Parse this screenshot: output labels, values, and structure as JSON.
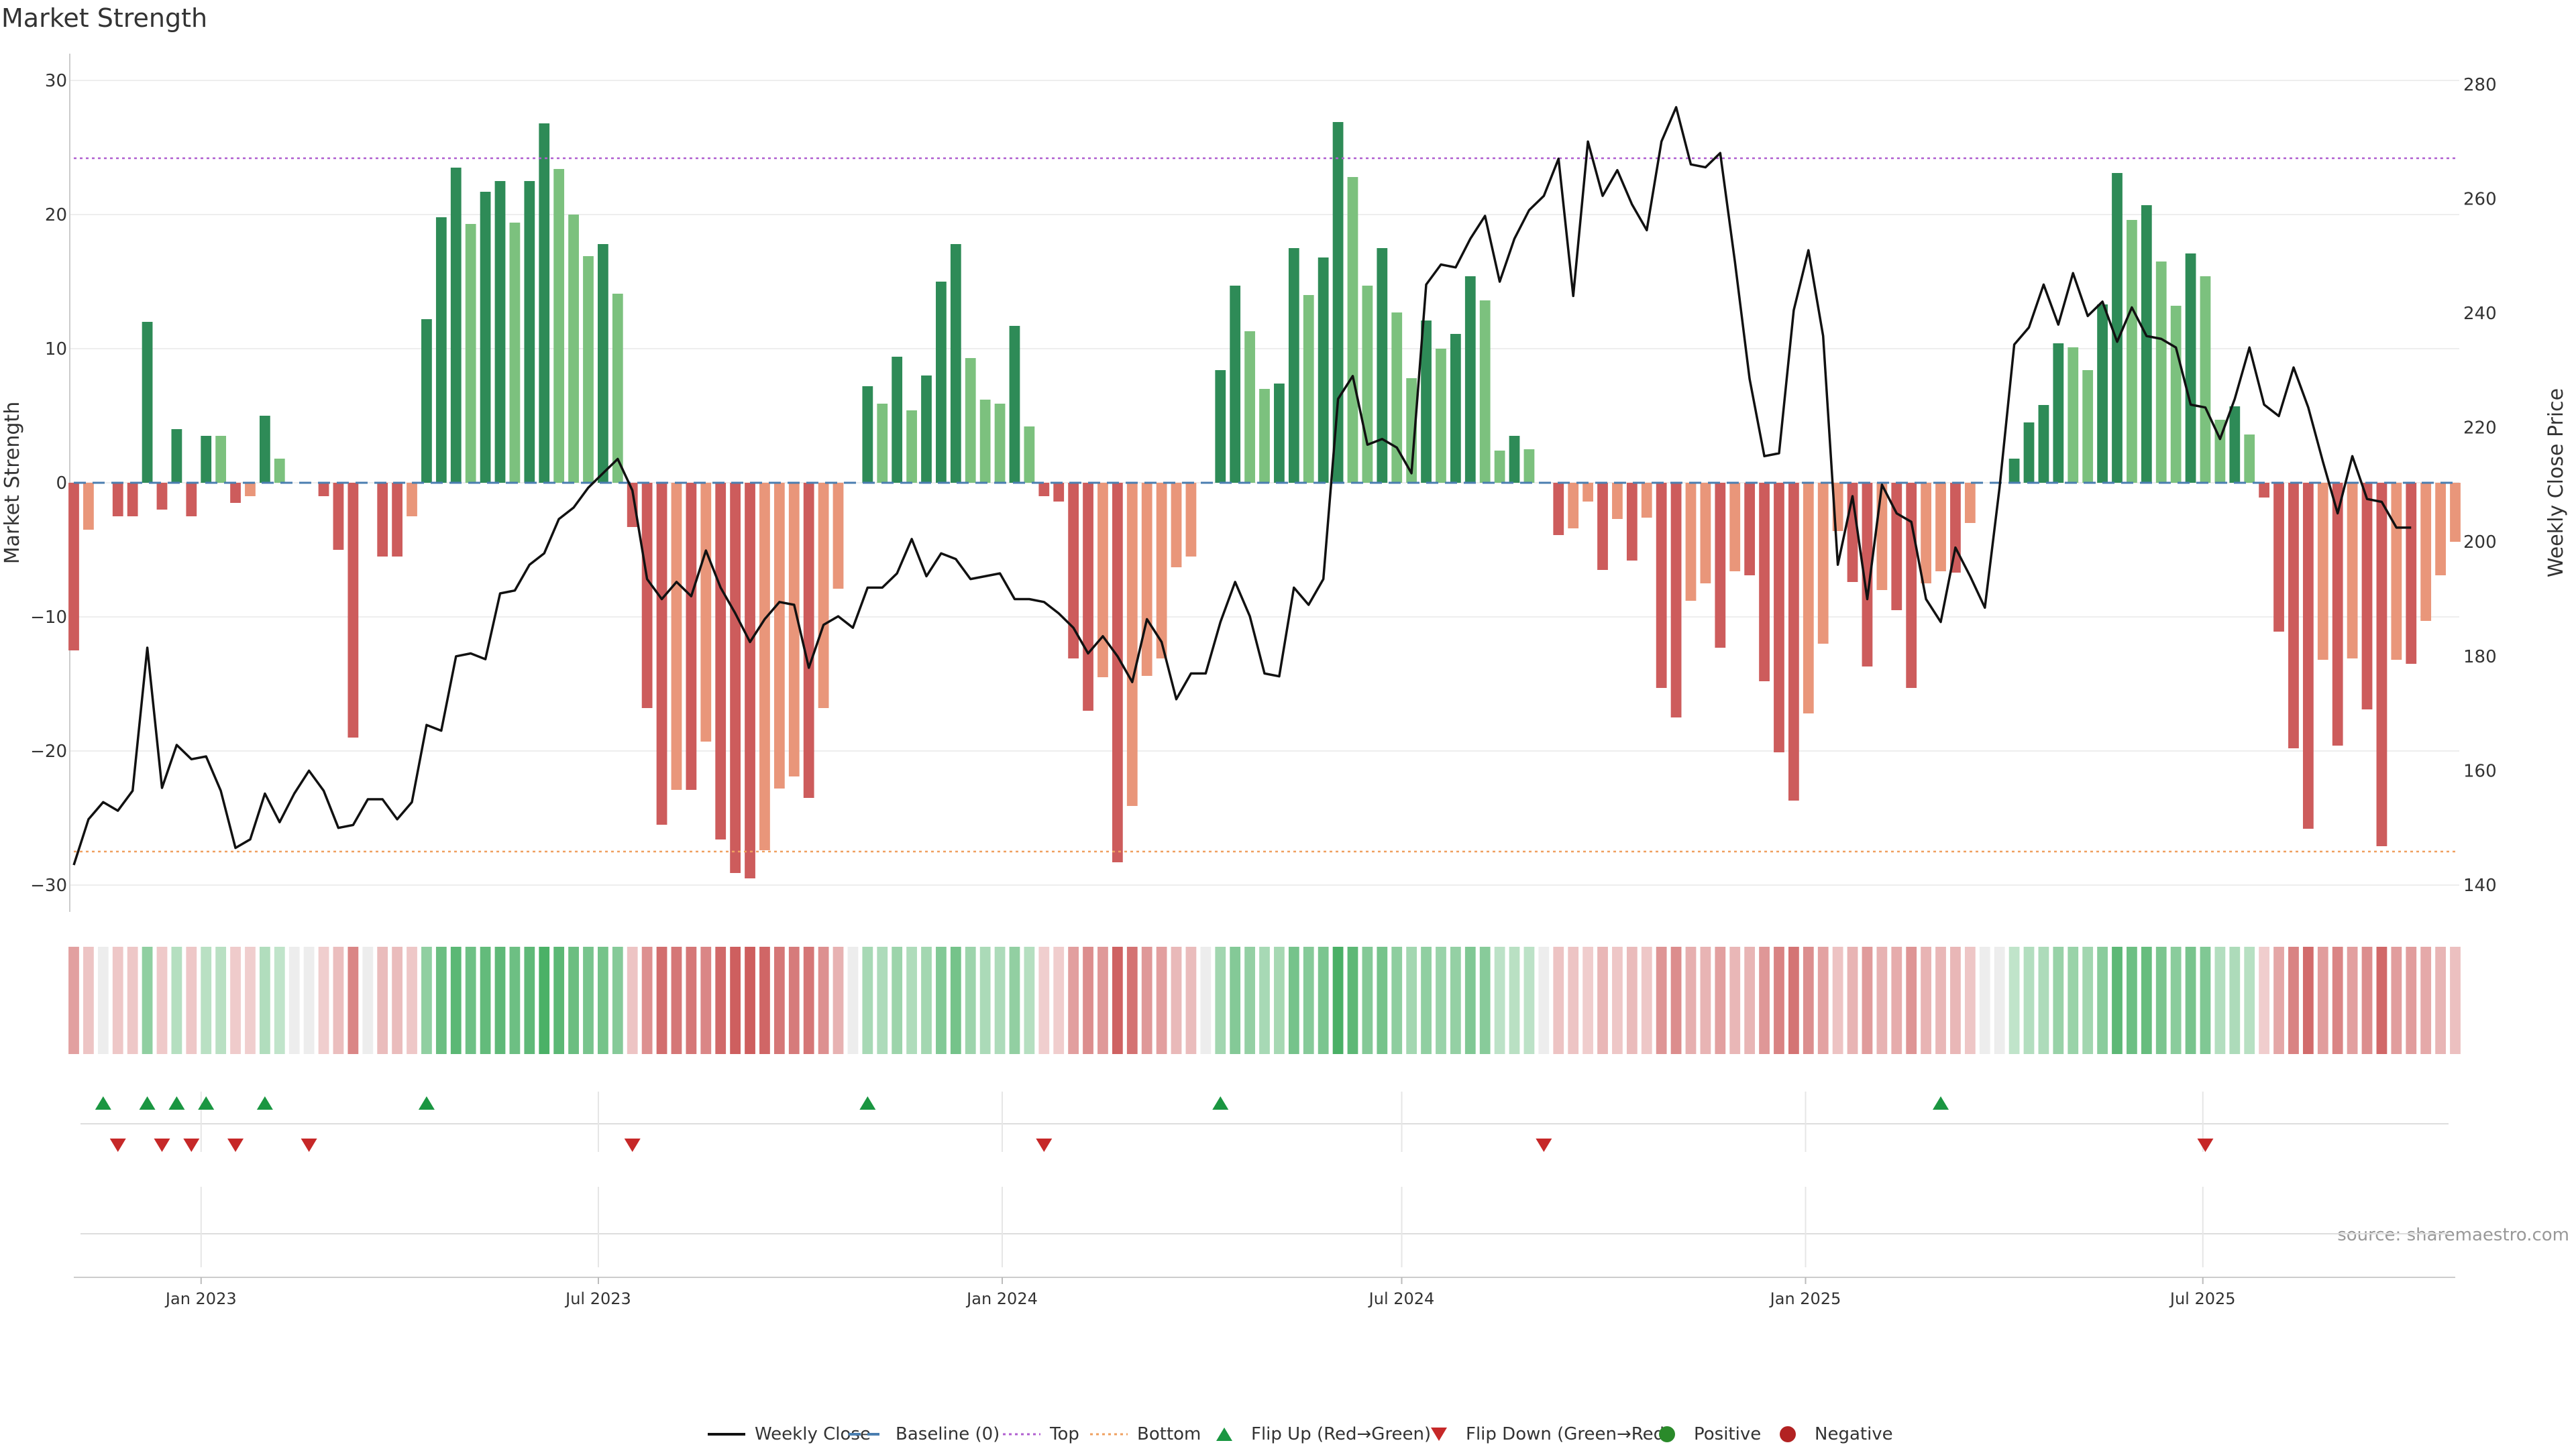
{
  "title": "Market Strength",
  "source_note": "source: sharemaestro.com",
  "colors": {
    "pos_strong": "#2e8b57",
    "pos_weak": "#7cc17e",
    "neg_strong": "#cd5c5c",
    "neg_weak": "#e9967a",
    "close_line": "#111111",
    "baseline": "#4a7eb0",
    "top": "#b05fd0",
    "bottom": "#f0a060",
    "flip_up": "#1a9641",
    "flip_down": "#c62828",
    "positive_dot": "#2a8a2a",
    "negative_dot": "#b22222",
    "grid": "#eeeeee"
  },
  "chart_data": {
    "type": "bar+line",
    "title": "Market Strength",
    "ylabel": "Market Strength",
    "y2label": "Weekly Close Price",
    "ylim": [
      -32,
      32
    ],
    "y2lim": [
      137.2,
      281.6
    ],
    "yticks": [
      -30,
      -20,
      -10,
      0,
      10,
      20,
      30
    ],
    "y2ticks": [
      140,
      160,
      180,
      200,
      220,
      240,
      260,
      280
    ],
    "x_start": "2022-11-04",
    "x_end": "2025-10-24",
    "x_step_days": 7,
    "xticks": [
      {
        "date": "2023-01-01",
        "label": "Jan 2023"
      },
      {
        "date": "2023-07-01",
        "label": "Jul 2023"
      },
      {
        "date": "2024-01-01",
        "label": "Jan 2024"
      },
      {
        "date": "2024-07-01",
        "label": "Jul 2024"
      },
      {
        "date": "2025-01-01",
        "label": "Jan 2025"
      },
      {
        "date": "2025-07-01",
        "label": "Jul 2025"
      }
    ],
    "reference_lines": {
      "top": 24.2,
      "bottom": -27.5,
      "baseline": 0
    },
    "strength": [
      -12.5,
      -3.5,
      0,
      -2.5,
      -2.5,
      12,
      -2,
      4,
      -2.5,
      3.5,
      3.5,
      -1.5,
      -1,
      5,
      1.8,
      0,
      0,
      -1,
      -5,
      -19,
      0,
      -5.5,
      -5.5,
      -2.5,
      12.2,
      19.8,
      23.5,
      19.3,
      21.7,
      22.5,
      19.4,
      22.5,
      26.8,
      23.4,
      20,
      16.9,
      17.8,
      14.1,
      -3.3,
      -16.8,
      -25.5,
      -22.9,
      -22.9,
      -19.3,
      -26.6,
      -29.1,
      -29.5,
      -27.4,
      -22.8,
      -21.9,
      -23.5,
      -16.8,
      -7.9,
      0,
      7.2,
      5.9,
      9.4,
      5.4,
      8,
      15,
      17.8,
      9.3,
      6.2,
      5.9,
      11.7,
      4.2,
      -1,
      -1.4,
      -13.1,
      -17,
      -14.5,
      -28.3,
      -24.1,
      -14.4,
      -13.1,
      -6.3,
      -5.5,
      0,
      8.4,
      14.7,
      11.3,
      7,
      7.4,
      17.5,
      14,
      16.8,
      26.9,
      22.8,
      14.7,
      17.5,
      12.7,
      7.8,
      12.1,
      10,
      11.1,
      15.4,
      13.6,
      2.4,
      3.5,
      2.5,
      0,
      -3.9,
      -3.4,
      -1.4,
      -6.5,
      -2.7,
      -5.8,
      -2.6,
      -15.3,
      -17.5,
      -8.8,
      -7.5,
      -12.3,
      -6.6,
      -6.9,
      -14.8,
      -20.1,
      -23.7,
      -17.2,
      -12,
      -3.6,
      -7.4,
      -13.7,
      -8,
      -9.5,
      -15.3,
      -7.5,
      -6.6,
      -6.7,
      -3,
      0,
      0,
      1.8,
      4.5,
      5.8,
      10.4,
      10.1,
      8.4,
      13.3,
      23.1,
      19.6,
      20.7,
      16.5,
      13.2,
      17.1,
      15.4,
      4.7,
      5.7,
      3.6,
      -1.1,
      -11.1,
      -19.8,
      -25.8,
      -13.2,
      -19.6,
      -13.1,
      -16.9,
      -27.1,
      -13.2,
      -13.5,
      -10.3,
      -6.9,
      -4.4
    ],
    "close": [
      143.5,
      151.5,
      154.5,
      153,
      156.5,
      181.5,
      157,
      164.5,
      162,
      162.5,
      156.5,
      146.5,
      148,
      156,
      151,
      156,
      160,
      156.5,
      150,
      150.5,
      155,
      155,
      151.5,
      154.5,
      168,
      167,
      180,
      180.5,
      179.5,
      191,
      191.5,
      196,
      198,
      204,
      206,
      209.5,
      212,
      214.5,
      209,
      193.5,
      190,
      193,
      190.5,
      198.5,
      192,
      187.5,
      182.5,
      186.5,
      189.5,
      189,
      178,
      185.5,
      187,
      185,
      192,
      192,
      194.5,
      200.5,
      194,
      198,
      197,
      193.5,
      194,
      194.5,
      190,
      190,
      189.5,
      187.5,
      185,
      180.5,
      183.5,
      180,
      175.5,
      186.5,
      182.5,
      172.5,
      177,
      177,
      186,
      193,
      187,
      177,
      176.5,
      192,
      189,
      193.5,
      225,
      229,
      217,
      218,
      216.5,
      212,
      245,
      248.5,
      248,
      253,
      257,
      245.5,
      253,
      258,
      260.5,
      267,
      243,
      270,
      260.5,
      265,
      259,
      254.5,
      270,
      276,
      266,
      265.5,
      268,
      249,
      228.5,
      215,
      215.5,
      240.5,
      251,
      236,
      196,
      208,
      190,
      210,
      205,
      203.5,
      190,
      186,
      199,
      194,
      188.5,
      209.5,
      234.5,
      237.5,
      245,
      238,
      247,
      239.5,
      242,
      235,
      241,
      236,
      235.5,
      234,
      224,
      223.5,
      218,
      225,
      234,
      224,
      222,
      230.5,
      223.5,
      214,
      205,
      215,
      207.5,
      207,
      202.5,
      202.5
    ],
    "flip_up_idx": [
      2,
      5,
      7,
      9,
      13,
      24,
      54,
      78,
      127
    ],
    "flip_down_idx": [
      3,
      6,
      8,
      11,
      16,
      38,
      66,
      100,
      145
    ]
  },
  "legend": [
    {
      "label": "Weekly Close",
      "symbol": "solid-line"
    },
    {
      "label": "Baseline (0)",
      "symbol": "dashed-line"
    },
    {
      "label": "Top",
      "symbol": "dotted-line"
    },
    {
      "label": "Bottom",
      "symbol": "dotted-line"
    },
    {
      "label": "Flip Up (Red→Green)",
      "symbol": "triangle-up"
    },
    {
      "label": "Flip Down (Green→Red)",
      "symbol": "triangle-down"
    },
    {
      "label": "Positive",
      "symbol": "dot"
    },
    {
      "label": "Negative",
      "symbol": "dot"
    }
  ]
}
